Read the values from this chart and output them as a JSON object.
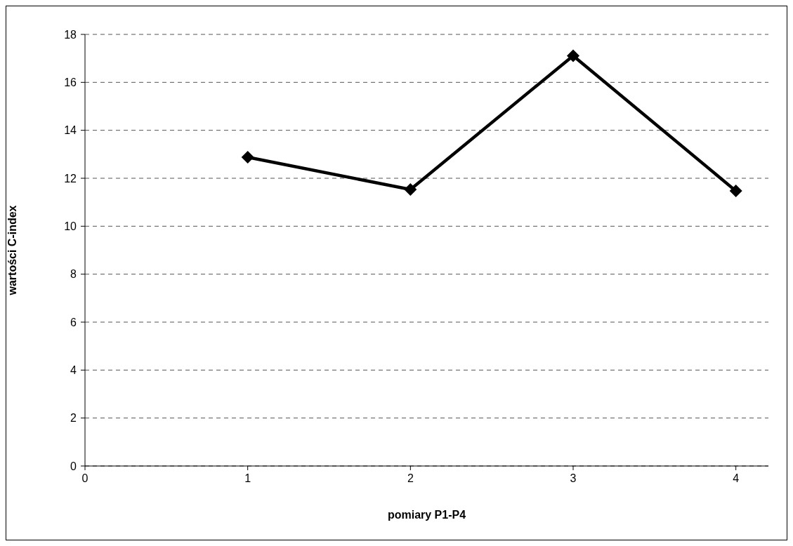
{
  "chart_data": {
    "type": "line",
    "xlabel": "pomiary P1-P4",
    "ylabel": "wartości C-index",
    "x": [
      1,
      2,
      3,
      4
    ],
    "series": [
      {
        "color": "#000000",
        "values": [
          12.88,
          11.53,
          17.11,
          11.47
        ]
      }
    ],
    "xlim": [
      0,
      4.2
    ],
    "xticks": [
      0,
      1,
      2,
      3,
      4
    ],
    "ylim": [
      0,
      18
    ],
    "yticks": [
      0,
      2,
      4,
      6,
      8,
      10,
      12,
      14,
      16,
      18
    ],
    "grid": "y",
    "legend": false,
    "marker": "diamond",
    "line_style": "solid"
  }
}
